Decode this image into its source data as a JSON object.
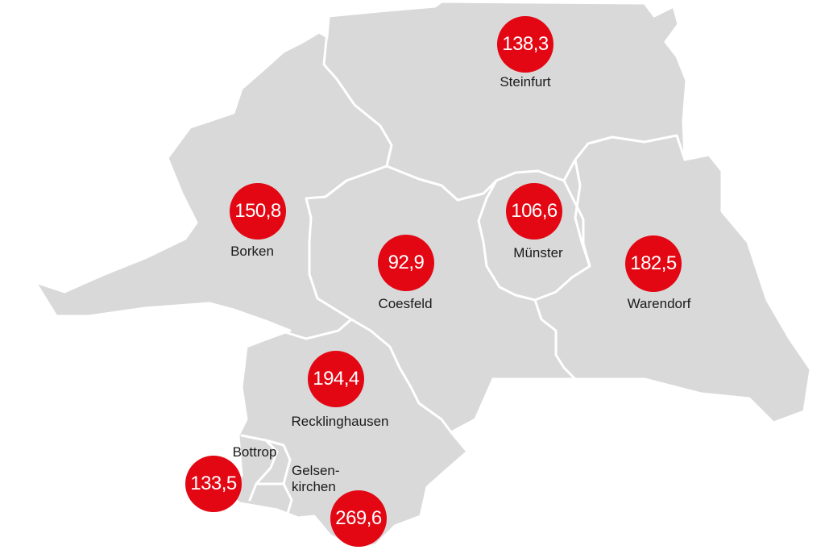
{
  "colors": {
    "land": "#d9d9d9",
    "borders": "#ffffff",
    "marker": "#e30613",
    "marker_text": "#ffffff",
    "label_text": "#1a1a1a"
  },
  "regions": [
    {
      "id": "steinfurt",
      "name": "Steinfurt",
      "value": "138,3"
    },
    {
      "id": "borken",
      "name": "Borken",
      "value": "150,8"
    },
    {
      "id": "muenster",
      "name": "Münster",
      "value": "106,6"
    },
    {
      "id": "coesfeld",
      "name": "Coesfeld",
      "value": "92,9"
    },
    {
      "id": "warendorf",
      "name": "Warendorf",
      "value": "182,5"
    },
    {
      "id": "recklinghausen",
      "name": "Recklinghausen",
      "value": "194,4"
    },
    {
      "id": "bottrop",
      "name": "Bottrop",
      "value": "133,5"
    },
    {
      "id": "gelsenkirchen",
      "name_line1": "Gelsen-",
      "name_line2": "kirchen",
      "value": "269,6"
    }
  ]
}
